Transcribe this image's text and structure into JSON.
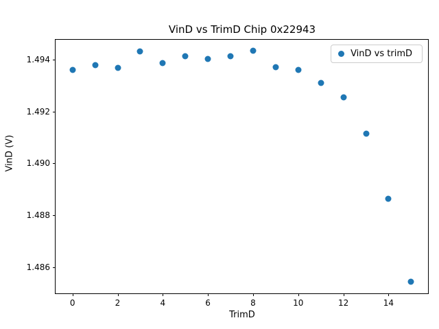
{
  "chart_data": {
    "type": "scatter",
    "title": "VinD vs TrimD Chip 0x22943",
    "xlabel": "TrimD",
    "ylabel": "VinD (V)",
    "legend_label": "VinD vs trimD",
    "legend_position": "upper right",
    "marker_color": "#1f77b4",
    "grid": false,
    "x": [
      0,
      1,
      2,
      3,
      4,
      5,
      6,
      7,
      8,
      9,
      10,
      11,
      12,
      13,
      14,
      15
    ],
    "y": [
      1.4936,
      1.49378,
      1.49368,
      1.4943,
      1.49385,
      1.49413,
      1.49403,
      1.49413,
      1.49433,
      1.4937,
      1.4936,
      1.4931,
      1.49255,
      1.49115,
      1.48863,
      1.48545
    ],
    "xlim": [
      -0.75,
      15.75
    ],
    "ylim": [
      1.485,
      1.49476
    ],
    "xticks": [
      0,
      2,
      4,
      6,
      8,
      10,
      12,
      14
    ],
    "yticks": [
      1.486,
      1.488,
      1.49,
      1.492,
      1.494
    ],
    "ytick_decimals": 3
  }
}
